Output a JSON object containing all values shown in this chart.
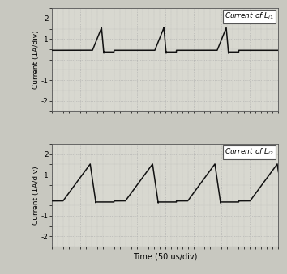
{
  "title1": "Current of $L_{i1}$",
  "title2": "Current of $L_{i2}$",
  "xlabel": "Time (50 us/div)",
  "ylabel": "Current (1A/div)",
  "ylim": [
    -2.5,
    2.5
  ],
  "yticks": [
    -2,
    -1,
    0,
    1,
    2
  ],
  "ytick_labels": [
    "-2",
    "-1",
    "",
    "1",
    "2"
  ],
  "xlim": [
    0,
    400
  ],
  "grid_color": "#aaaaaa",
  "line_color": "#111111",
  "bg_color": "#d8d8d0",
  "fig_bg": "#c8c8c0",
  "period": 110,
  "sig1_baseline": 0.45,
  "sig1_peak": 1.55,
  "sig1_flat_end": 72,
  "sig1_ramp_end": 88,
  "sig1_drop_end": 92,
  "sig2_baseline": -0.28,
  "sig2_peak": 1.52,
  "sig2_flat_end": 20,
  "sig2_ramp_end": 68,
  "sig2_drop_end": 78
}
